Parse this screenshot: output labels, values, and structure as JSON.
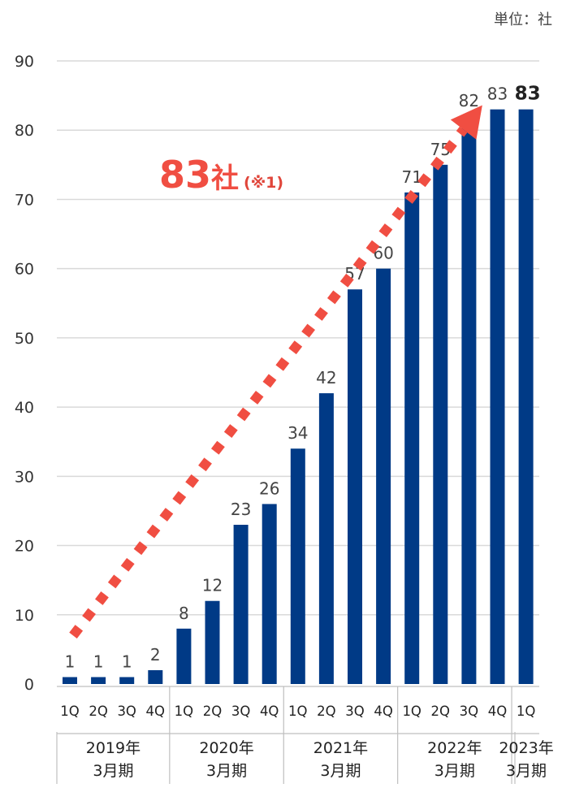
{
  "unit_label": "単位：社",
  "callout": {
    "value": "83",
    "suffix": "社",
    "note": "(※1)"
  },
  "colors": {
    "bar": "#003a86",
    "arrow": "#f04e42",
    "grid": "#d9d9d9",
    "text": "#333333"
  },
  "chart_data": {
    "type": "bar",
    "y_ticks": [
      0,
      10,
      20,
      30,
      40,
      50,
      60,
      70,
      80,
      90
    ],
    "ylim": [
      0,
      90
    ],
    "grid": true,
    "categories": [
      "1Q",
      "2Q",
      "3Q",
      "4Q",
      "1Q",
      "2Q",
      "3Q",
      "4Q",
      "1Q",
      "2Q",
      "3Q",
      "4Q",
      "1Q",
      "2Q",
      "3Q",
      "4Q",
      "1Q"
    ],
    "values": [
      1,
      1,
      1,
      2,
      8,
      12,
      23,
      26,
      34,
      42,
      57,
      60,
      71,
      75,
      82,
      83,
      83
    ],
    "value_labels": [
      "1",
      "1",
      "1",
      "2",
      "8",
      "12",
      "23",
      "26",
      "34",
      "42",
      "57",
      "60",
      "71",
      "75",
      "82",
      "83",
      "83"
    ],
    "highlight_last_label": true,
    "groups": [
      {
        "line1": "2019年",
        "line2": "3月期",
        "count": 4
      },
      {
        "line1": "2020年",
        "line2": "3月期",
        "count": 4
      },
      {
        "line1": "2021年",
        "line2": "3月期",
        "count": 4
      },
      {
        "line1": "2022年",
        "line2": "3月期",
        "count": 4
      },
      {
        "line1": "2023年",
        "line2": "3月期",
        "count": 1
      }
    ],
    "trend_arrow": {
      "from_value": 7,
      "to_value": 83
    }
  }
}
